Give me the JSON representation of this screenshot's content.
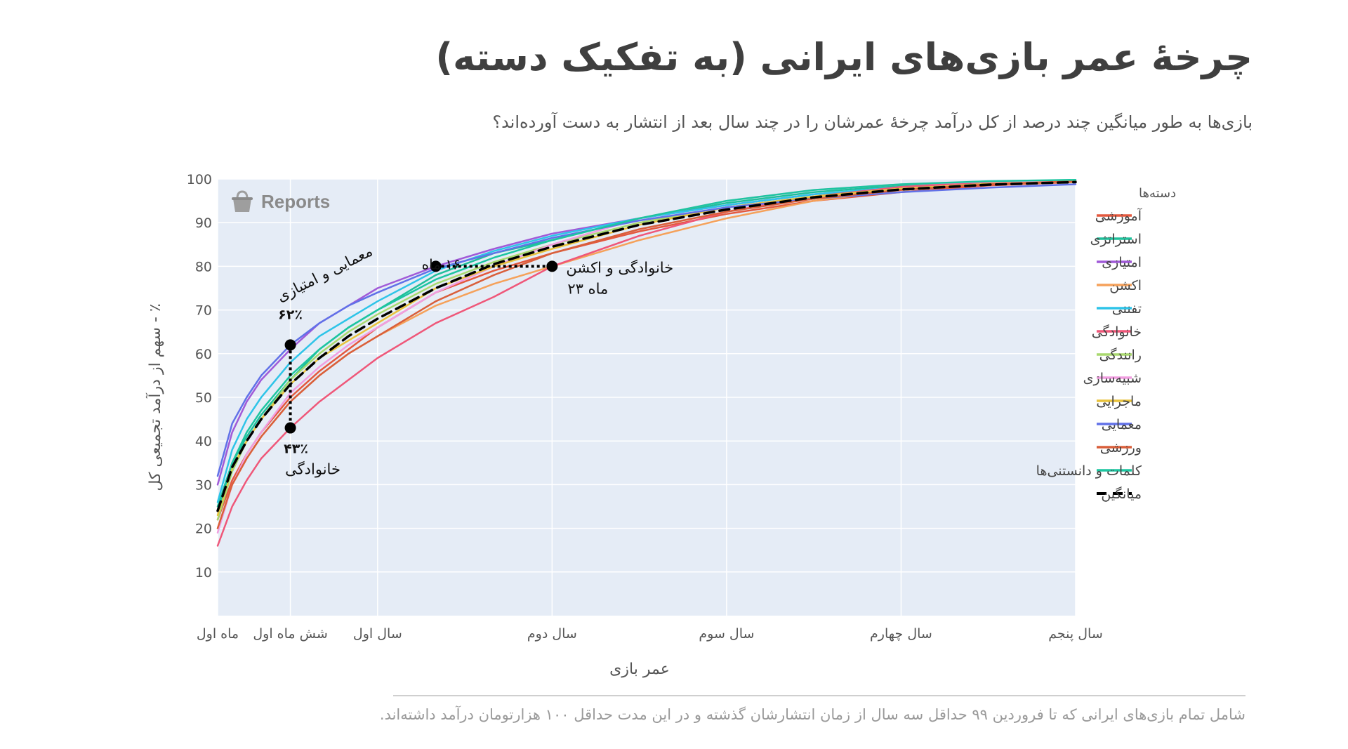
{
  "title": "چرخۀ عمر بازی‌های ایرانی (به تفکیک دسته)",
  "subtitle": "بازی‌ها به طور میانگین چند درصد از کل درآمد چرخۀ عمرشان را در چند سال بعد از انتشار به دست آورده‌اند؟",
  "footer": "شامل تمام بازی‌های ایرانی که تا فروردین ۹۹ حداقل سه سال از زمان انتشارشان گذشته و در این مدت حداقل ۱۰۰ هزارتومان درآمد داشته‌اند.",
  "watermark": "Reports",
  "chart_data": {
    "type": "line",
    "xlabel": "عمر بازی",
    "ylabel": "٪ - سهم از درآمد تجمیعی کل",
    "ylim": [
      0,
      100
    ],
    "xlim": [
      1,
      60
    ],
    "grid": true,
    "x_ticks": [
      {
        "value": 1,
        "label": "ماه اول"
      },
      {
        "value": 6,
        "label": "شش ماه اول"
      },
      {
        "value": 12,
        "label": "سال اول"
      },
      {
        "value": 24,
        "label": "سال دوم"
      },
      {
        "value": 36,
        "label": "سال سوم"
      },
      {
        "value": 48,
        "label": "سال چهارم"
      },
      {
        "value": 60,
        "label": "سال پنجم"
      }
    ],
    "y_ticks": [
      10,
      20,
      30,
      40,
      50,
      60,
      70,
      80,
      90,
      100
    ],
    "legend_title": "دسته‌ها",
    "legend_position": "right",
    "x": [
      1,
      2,
      3,
      4,
      6,
      8,
      10,
      12,
      16,
      20,
      24,
      30,
      36,
      42,
      48,
      54,
      60
    ],
    "series": [
      {
        "name": "آموزشی",
        "color": "#e4583e",
        "values": [
          22,
          31,
          37,
          42,
          50,
          56,
          61,
          66,
          74,
          79,
          83,
          88,
          92,
          95,
          97,
          98.5,
          99.3
        ]
      },
      {
        "name": "استراتژی",
        "color": "#1fbf9a",
        "values": [
          25,
          35,
          41,
          46,
          54,
          61,
          66,
          70,
          78,
          83,
          86,
          91,
          94.5,
          97,
          98.5,
          99.3,
          99.7
        ]
      },
      {
        "name": "امتیازی",
        "color": "#a05ad8",
        "values": [
          30,
          42,
          49,
          54,
          61,
          67,
          71,
          75,
          80,
          84,
          87.5,
          91,
          94,
          96.5,
          98,
          99,
          99.5
        ]
      },
      {
        "name": "اکشن",
        "color": "#f5a15a",
        "values": [
          20,
          30,
          36,
          41,
          49,
          55,
          60,
          64,
          71,
          76,
          80,
          86,
          91,
          95,
          97.5,
          99,
          99.6
        ]
      },
      {
        "name": "تفننی",
        "color": "#2ec4e8",
        "values": [
          26,
          38,
          45,
          50,
          58,
          64,
          68,
          72,
          79,
          83.5,
          87,
          91,
          94,
          96.5,
          98.2,
          99.2,
          99.6
        ]
      },
      {
        "name": "خانوادگی",
        "color": "#ef5779",
        "values": [
          16,
          25,
          31,
          36,
          43,
          49,
          54,
          59,
          67,
          73,
          80,
          87,
          92.5,
          96,
          98.2,
          99.3,
          99.7
        ]
      },
      {
        "name": "رانندگی",
        "color": "#a9d86e",
        "values": [
          22,
          33,
          40,
          45,
          54,
          60,
          65,
          69,
          76,
          81,
          85,
          90,
          93.5,
          96,
          97.8,
          98.8,
          99.4
        ]
      },
      {
        "name": "شبیه‌سازی",
        "color": "#f09ee0",
        "values": [
          19,
          30,
          37,
          42,
          51,
          57,
          62,
          66,
          74,
          80,
          85,
          91,
          95,
          97.5,
          98.8,
          99.4,
          99.7
        ]
      },
      {
        "name": "ماجرایی",
        "color": "#e8c23c",
        "values": [
          23,
          34,
          40,
          45,
          53,
          59,
          63,
          67,
          75,
          80,
          84,
          89.5,
          93.5,
          96,
          97.8,
          98.9,
          99.4
        ]
      },
      {
        "name": "معمایی",
        "color": "#6171e8",
        "values": [
          32,
          44,
          50,
          55,
          62,
          67,
          71,
          74,
          79.5,
          83,
          86.5,
          90.5,
          93.5,
          95.5,
          97,
          98,
          98.8
        ]
      },
      {
        "name": "ورزشی",
        "color": "#d95f3b",
        "values": [
          20,
          30,
          36,
          41,
          49,
          55,
          60,
          64,
          72,
          78,
          83,
          88.5,
          92.5,
          95.5,
          97.5,
          98.8,
          99.5
        ]
      },
      {
        "name": "کلمات و دانستنی‌ها",
        "color": "#1dc5a0",
        "values": [
          24,
          35,
          42,
          47,
          55,
          61,
          66,
          70,
          77,
          82,
          86,
          91,
          95,
          97.5,
          98.8,
          99.5,
          99.8
        ]
      },
      {
        "name": "میانگین",
        "color": "#000000",
        "dashed": true,
        "values": [
          24,
          34,
          40,
          45,
          53,
          59,
          64,
          68,
          75,
          80.5,
          84.5,
          89.5,
          93,
          95.8,
          97.6,
          98.7,
          99.3
        ]
      }
    ],
    "annotations": [
      {
        "text": "معمایی و امتیازی",
        "x": 6,
        "y": 62
      },
      {
        "text": "۶۲٪",
        "x": 6,
        "y": 62
      },
      {
        "text": "۴۳٪",
        "x": 6,
        "y": 43
      },
      {
        "text": "خانوادگی",
        "x": 6,
        "y": 43
      },
      {
        "text": "۱۶ ماه",
        "x": 16,
        "y": 80
      },
      {
        "text": "خانوادگی و اکشن",
        "x": 24,
        "y": 80
      },
      {
        "text": "۲۳ ماه",
        "x": 24,
        "y": 80
      }
    ]
  }
}
